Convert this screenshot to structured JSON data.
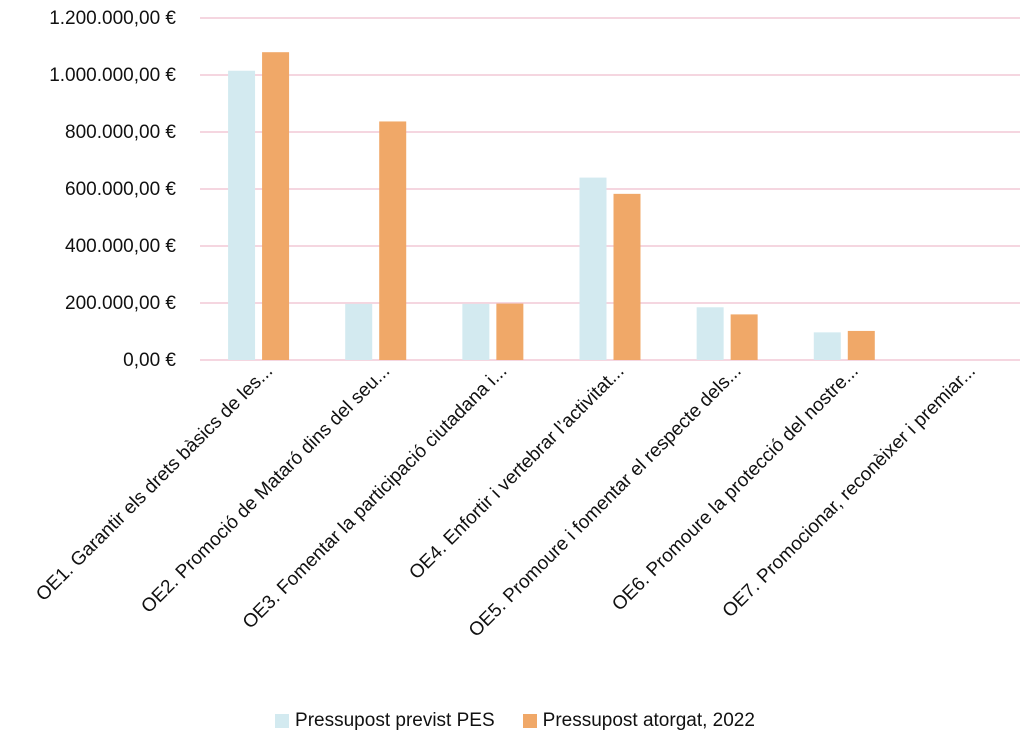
{
  "chart_data": {
    "type": "bar",
    "categories": [
      "OE1. Garantir els drets bàsics de les...",
      "OE2. Promoció de Mataró dins del seu...",
      "OE3. Fomentar la participació ciutadana i...",
      "OE4. Enfortir i vertebrar l’activitat...",
      "OE5. Promoure i fomentar el respecte dels...",
      "OE6. Promoure la protecció del nostre...",
      "OE7. Promocionar, reconèixer i premiar..."
    ],
    "series": [
      {
        "name": "Pressupost previst PES",
        "color": "#d3eaf0",
        "values": [
          1015000,
          197000,
          197000,
          640000,
          185000,
          97000,
          0
        ]
      },
      {
        "name": "Pressupost atorgat, 2022",
        "color": "#f0a868",
        "values": [
          1080000,
          837000,
          198000,
          583000,
          160000,
          102000,
          0
        ]
      }
    ],
    "yticks": [
      "0,00 €",
      "200.000,00 €",
      "400.000,00 €",
      "600.000,00 €",
      "800.000,00 €",
      "1.000.000,00 €",
      "1.200.000,00 €"
    ],
    "ylim": [
      0,
      1200000
    ],
    "grid": true,
    "gridColor": "#f2c9d6",
    "legend": "bottom",
    "title": "",
    "xlabel": "",
    "ylabel": ""
  }
}
